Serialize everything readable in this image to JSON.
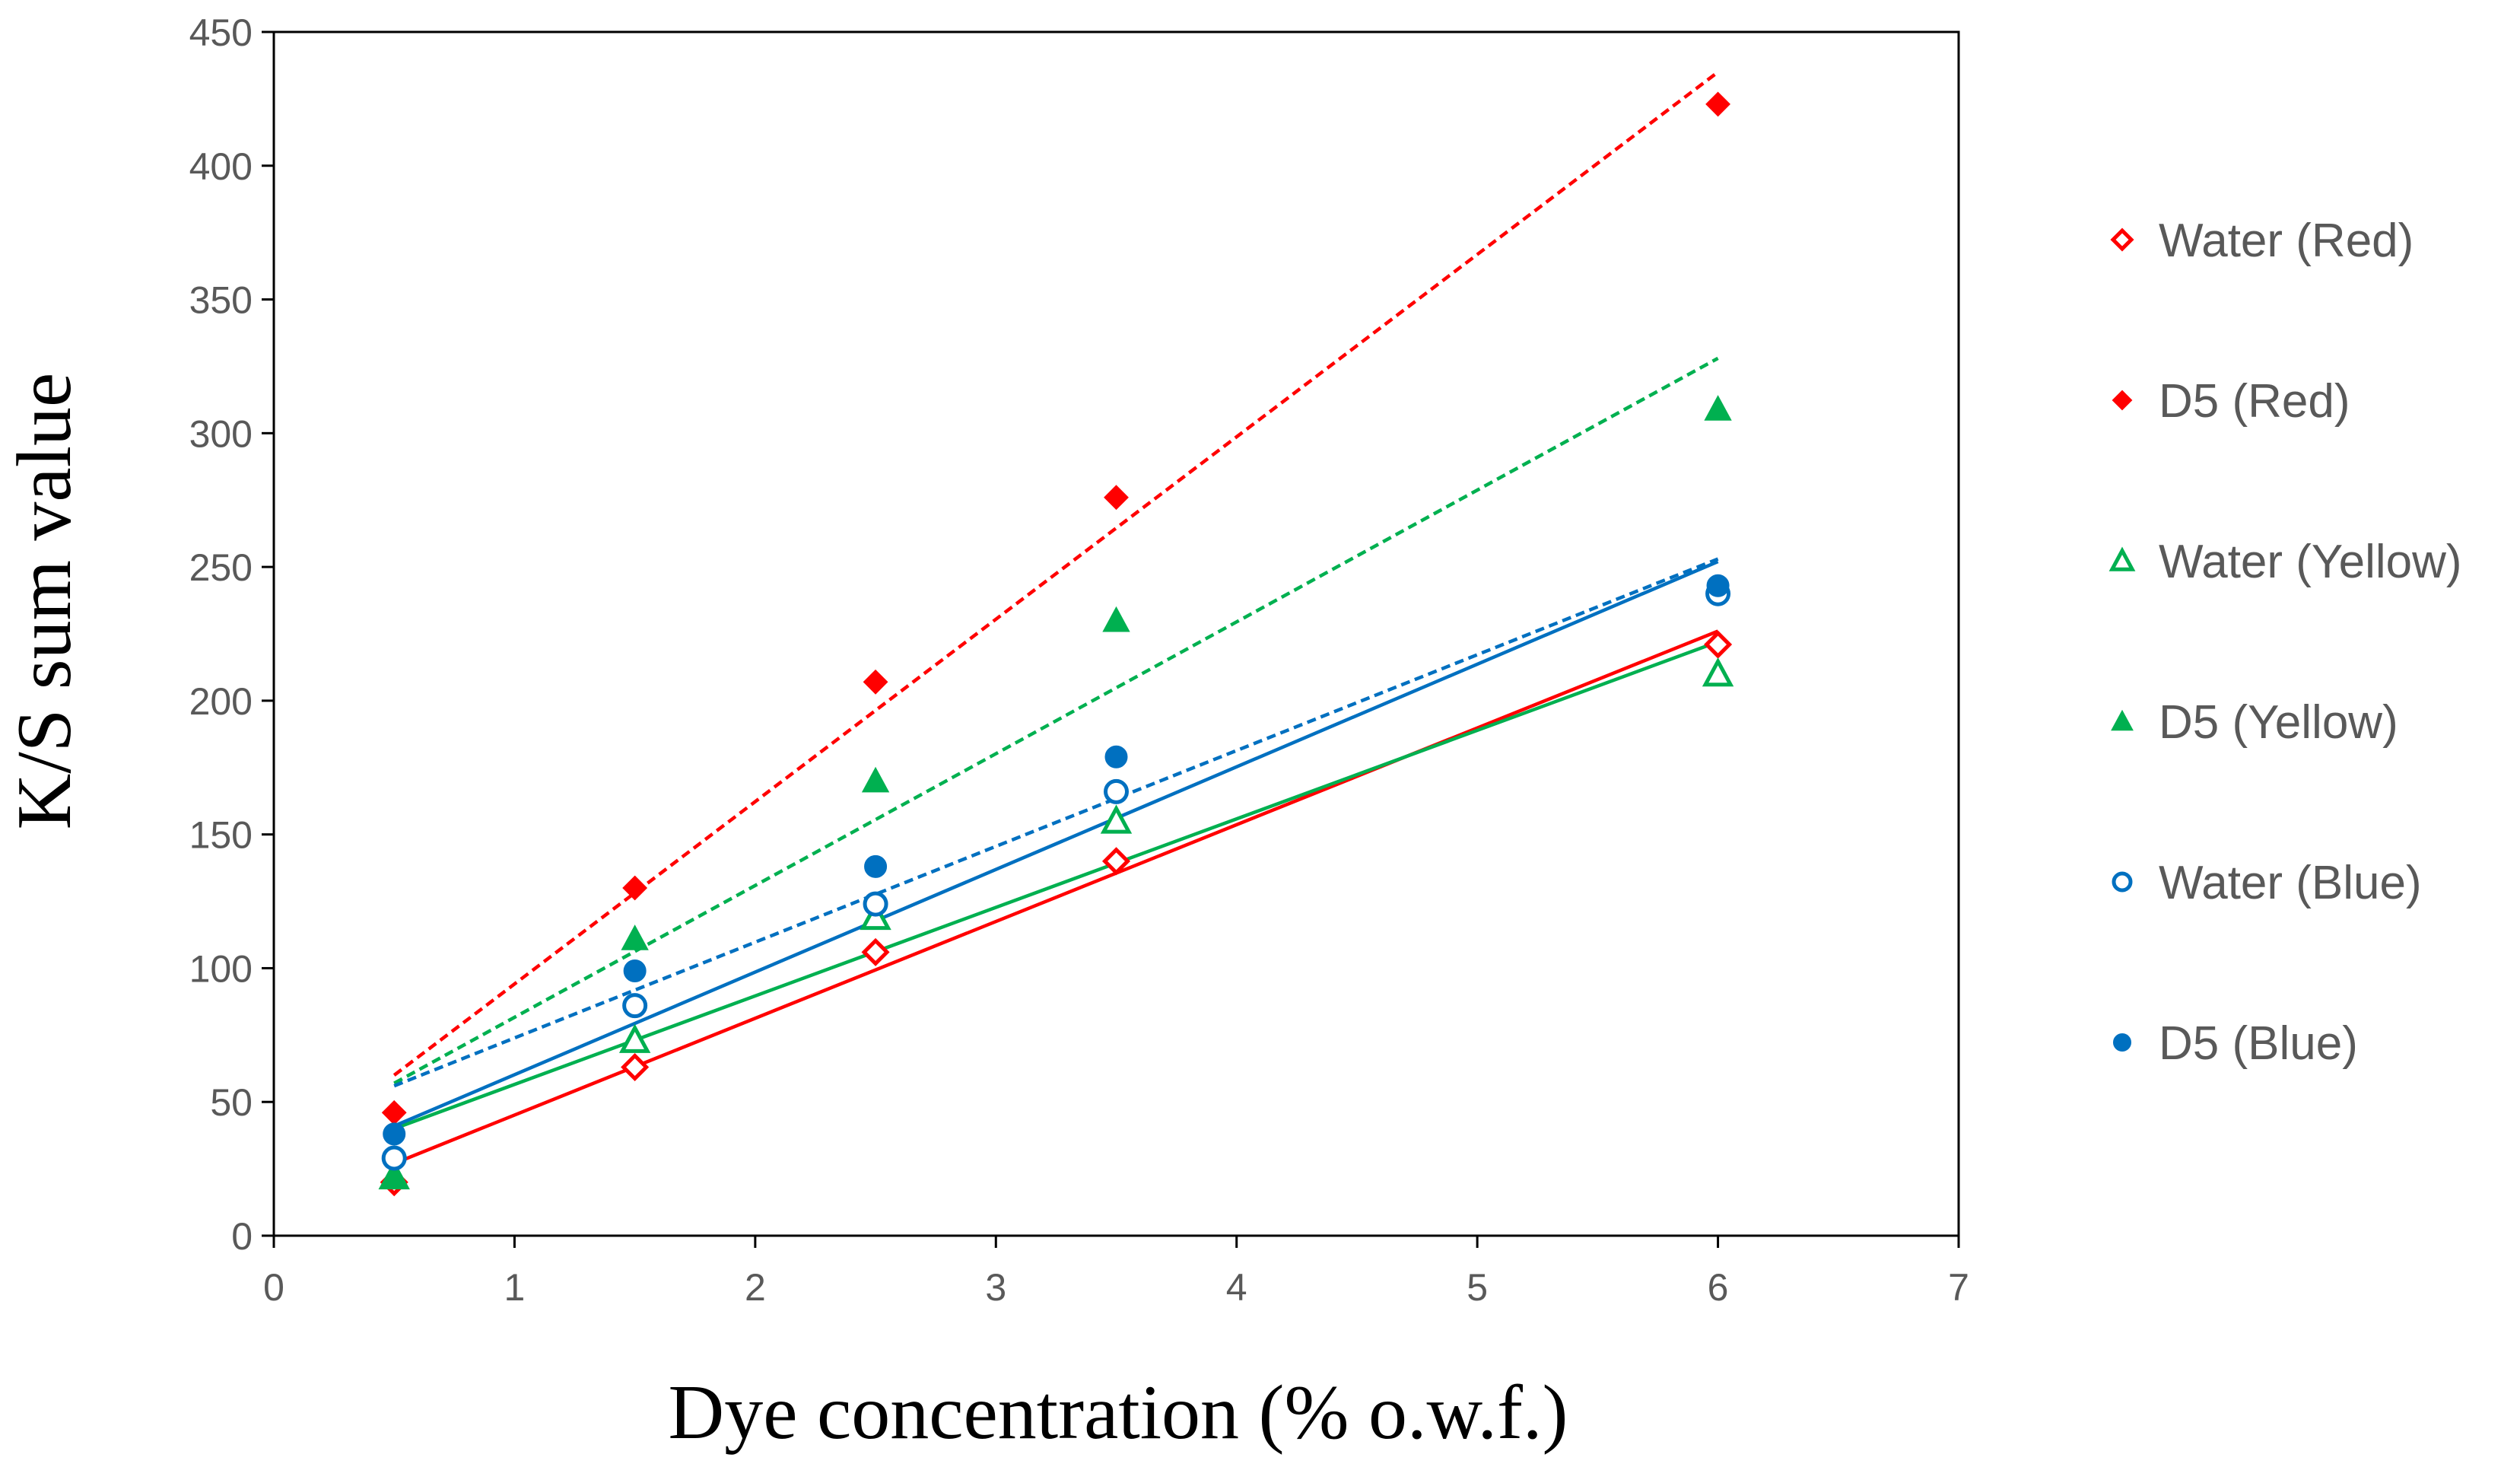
{
  "chart_data": {
    "type": "scatter",
    "title": "",
    "xlabel": "Dye concentration (% o.w.f.)",
    "ylabel": "K/S sum value",
    "xlim": [
      0,
      7
    ],
    "ylim": [
      0,
      450
    ],
    "xticks": [
      0,
      1,
      2,
      3,
      4,
      5,
      6,
      7
    ],
    "yticks": [
      0,
      50,
      100,
      150,
      200,
      250,
      300,
      350,
      400,
      450
    ],
    "grid": false,
    "legend_position": "right",
    "x": [
      0.5,
      1.5,
      2.5,
      3.5,
      6
    ],
    "series": [
      {
        "name": "Water (Red)",
        "color": "#ff0000",
        "marker": "diamond",
        "filled": false,
        "trendline": "solid",
        "values": [
          20,
          63,
          106,
          140,
          221
        ],
        "trend": [
          [
            0.5,
            27
          ],
          [
            6,
            226
          ]
        ]
      },
      {
        "name": "D5 (Red)",
        "color": "#ff0000",
        "marker": "diamond",
        "filled": true,
        "trendline": "dashed",
        "values": [
          46,
          130,
          207,
          276,
          423
        ],
        "trend": [
          [
            0.5,
            60
          ],
          [
            6,
            435
          ]
        ]
      },
      {
        "name": "Water (Yellow)",
        "color": "#00b050",
        "marker": "triangle",
        "filled": false,
        "trendline": "solid",
        "values": [
          22,
          73,
          119,
          155,
          210
        ],
        "trend": [
          [
            0.5,
            40
          ],
          [
            6,
            222
          ]
        ]
      },
      {
        "name": "D5 (Yellow)",
        "color": "#00b050",
        "marker": "triangle",
        "filled": true,
        "trendline": "dashed",
        "values": [
          22,
          111,
          170,
          230,
          309
        ],
        "trend": [
          [
            0.5,
            57
          ],
          [
            6,
            328
          ]
        ]
      },
      {
        "name": "Water (Blue)",
        "color": "#0070c0",
        "marker": "circle",
        "filled": false,
        "trendline": "dashed",
        "values": [
          29,
          86,
          124,
          166,
          240
        ],
        "trend": [
          [
            0.5,
            56
          ],
          [
            6,
            253
          ]
        ]
      },
      {
        "name": "D5 (Blue)",
        "color": "#0070c0",
        "marker": "circle",
        "filled": true,
        "trendline": "solid",
        "values": [
          38,
          99,
          138,
          179,
          243
        ],
        "trend": [
          [
            0.5,
            41
          ],
          [
            6,
            252
          ]
        ]
      }
    ]
  }
}
